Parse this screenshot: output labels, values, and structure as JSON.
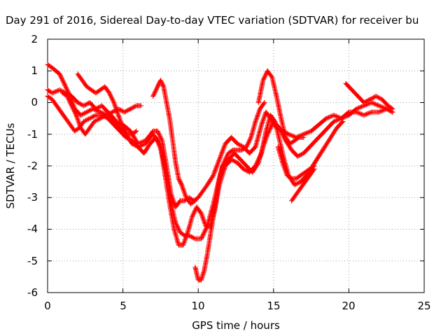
{
  "chart_data": {
    "type": "scatter",
    "title": "Day 291 of 2016, Sidereal Day-to-day VTEC variation (SDTVAR) for receiver bu",
    "xlabel": "GPS time / hours",
    "ylabel": "SDTVAR / TECUs",
    "xlim": [
      0,
      25
    ],
    "ylim": [
      -6,
      2
    ],
    "xticks": [
      "0",
      "5",
      "10",
      "15",
      "20",
      "25"
    ],
    "yticks": [
      "2",
      "1",
      "0",
      "-1",
      "-2",
      "-3",
      "-4",
      "-5",
      "-6"
    ],
    "grid": true,
    "marker": "plus",
    "color": "#ff0000",
    "series": [
      {
        "x": [
          0.0,
          0.3,
          0.8,
          1.2,
          1.5,
          1.8,
          2.2,
          2.6,
          3.0,
          3.5,
          4.0,
          4.5,
          5.0,
          5.5,
          6.0,
          6.5,
          7.0,
          7.3,
          7.6,
          7.9,
          8.2,
          8.5,
          8.8,
          9.1,
          9.4,
          9.7,
          10.0,
          10.3,
          10.6,
          11.0,
          11.4,
          11.8,
          12.2,
          12.6,
          13.0,
          13.4,
          13.8,
          14.2,
          14.5,
          14.8,
          15.2,
          15.6,
          16.0,
          16.5,
          17.0,
          17.5,
          18.0,
          18.5,
          19.0,
          19.5,
          20.0,
          20.5,
          21.0,
          21.5,
          22.0,
          22.5,
          22.9
        ],
        "y": [
          1.2,
          1.1,
          0.9,
          0.5,
          0.2,
          -0.2,
          -0.4,
          -0.3,
          -0.2,
          -0.3,
          -0.4,
          -0.6,
          -0.7,
          -0.9,
          -1.3,
          -1.2,
          -0.9,
          -0.9,
          -1.2,
          -2.0,
          -2.9,
          -3.3,
          -3.1,
          -3.1,
          -3.0,
          -3.1,
          -3.0,
          -2.8,
          -2.6,
          -2.3,
          -1.8,
          -1.3,
          -1.1,
          -1.3,
          -1.4,
          -1.6,
          -1.4,
          -0.7,
          -0.3,
          -0.5,
          -0.8,
          -0.9,
          -1.0,
          -1.1,
          -1.0,
          -0.9,
          -0.7,
          -0.5,
          -0.4,
          -0.5,
          -0.3,
          -0.3,
          -0.4,
          -0.3,
          -0.3,
          -0.2,
          -0.3
        ]
      },
      {
        "x": [
          0.0,
          0.3,
          0.8,
          1.2,
          1.6,
          2.0,
          2.4,
          2.8,
          3.2,
          3.6,
          4.0,
          4.4,
          4.8,
          5.2,
          5.6,
          6.0,
          6.5,
          7.0,
          7.3,
          7.6,
          7.9,
          8.2,
          8.5,
          8.8,
          9.1,
          9.4,
          9.8,
          10.2,
          10.6,
          11.0,
          11.3,
          11.6,
          12.0,
          12.4,
          12.8,
          13.2,
          13.6,
          14.0,
          14.3,
          14.6,
          15.0,
          15.4,
          15.8,
          16.2,
          16.6,
          17.0,
          17.4,
          17.8,
          18.2,
          18.6,
          19.0,
          19.5,
          20.0,
          20.5,
          21.0,
          21.5,
          22.0,
          22.5,
          22.9
        ],
        "y": [
          0.4,
          0.3,
          0.4,
          0.3,
          0.2,
          0.0,
          -0.1,
          0.0,
          -0.2,
          -0.1,
          -0.3,
          -0.5,
          -0.8,
          -1.0,
          -1.3,
          -1.4,
          -1.3,
          -1.0,
          -1.2,
          -1.6,
          -2.3,
          -3.2,
          -3.8,
          -4.1,
          -4.2,
          -4.2,
          -4.3,
          -4.3,
          -3.9,
          -3.2,
          -2.6,
          -2.0,
          -1.8,
          -1.6,
          -1.8,
          -2.0,
          -2.2,
          -1.9,
          -1.4,
          -1.0,
          -0.6,
          -0.8,
          -1.2,
          -1.5,
          -1.7,
          -1.6,
          -1.4,
          -1.2,
          -1.0,
          -0.8,
          -0.6,
          -0.5,
          -0.4,
          -0.2,
          -0.1,
          0.0,
          -0.1,
          -0.2,
          -0.3
        ]
      },
      {
        "x": [
          0.0,
          0.3,
          0.6,
          0.9,
          1.2,
          1.5,
          1.8,
          2.1,
          2.4,
          2.8,
          3.2,
          3.6,
          4.0,
          4.4,
          4.8,
          5.2,
          5.6,
          6.0,
          6.4,
          6.8,
          7.2,
          7.5,
          7.8,
          8.1,
          8.4,
          8.7,
          9.0,
          9.3,
          9.6,
          9.9,
          10.2,
          10.5,
          10.8,
          11.1,
          11.4,
          11.8,
          12.2,
          12.6,
          13.0,
          13.4,
          13.8,
          14.2,
          14.5,
          14.8,
          15.1,
          15.4,
          15.7,
          16.0,
          16.4,
          16.8,
          17.2,
          17.6,
          18.0,
          18.4,
          18.8,
          19.2,
          19.6
        ],
        "y": [
          0.2,
          0.1,
          -0.1,
          -0.3,
          -0.5,
          -0.7,
          -0.9,
          -0.8,
          -0.6,
          -0.5,
          -0.4,
          -0.4,
          -0.5,
          -0.7,
          -0.9,
          -1.1,
          -1.2,
          -1.4,
          -1.6,
          -1.3,
          -1.1,
          -1.4,
          -2.3,
          -3.2,
          -4.0,
          -4.5,
          -4.5,
          -4.1,
          -3.6,
          -3.3,
          -3.5,
          -3.9,
          -3.9,
          -3.4,
          -2.6,
          -2.0,
          -1.8,
          -1.9,
          -2.1,
          -2.2,
          -2.0,
          -1.6,
          -0.9,
          -0.4,
          -0.6,
          -1.2,
          -1.8,
          -2.3,
          -2.6,
          -2.5,
          -2.3,
          -2.0,
          -1.7,
          -1.4,
          -1.1,
          -0.8,
          -0.6
        ]
      },
      {
        "x": [
          1.0,
          1.3,
          1.6,
          1.9,
          2.2,
          2.5,
          2.8,
          3.1,
          3.5,
          3.9,
          4.3,
          4.7,
          5.1,
          5.5,
          5.9,
          6.2
        ],
        "y": [
          0.3,
          0.2,
          -0.1,
          -0.4,
          -0.8,
          -1.0,
          -0.8,
          -0.6,
          -0.5,
          -0.4,
          -0.3,
          -0.2,
          -0.3,
          -0.2,
          -0.1,
          -0.1
        ]
      },
      {
        "x": [
          2.0,
          2.3,
          2.6,
          2.9,
          3.2,
          3.5,
          3.8,
          4.1,
          4.4,
          4.7,
          5.0,
          5.3,
          5.6,
          5.9
        ],
        "y": [
          0.9,
          0.7,
          0.5,
          0.4,
          0.3,
          0.4,
          0.5,
          0.3,
          0.0,
          -0.4,
          -0.8,
          -1.0,
          -1.0,
          -0.9
        ]
      },
      {
        "x": [
          7.0,
          7.3,
          7.5,
          7.7,
          7.9,
          8.1,
          8.3,
          8.5,
          8.7,
          8.9,
          9.2,
          9.5,
          9.8
        ],
        "y": [
          0.2,
          0.5,
          0.7,
          0.5,
          0.0,
          -0.5,
          -1.2,
          -1.9,
          -2.4,
          -2.6,
          -3.0,
          -3.2,
          -3.1
        ]
      },
      {
        "x": [
          9.8,
          10.0,
          10.2,
          10.4,
          10.6,
          10.8,
          11.0,
          11.2,
          11.4,
          11.7,
          12.0,
          12.3,
          12.6,
          12.9,
          13.2,
          13.5,
          13.8,
          14.1,
          14.4
        ],
        "y": [
          -5.2,
          -5.6,
          -5.6,
          -5.3,
          -4.8,
          -4.2,
          -3.6,
          -3.0,
          -2.4,
          -1.9,
          -1.6,
          -1.5,
          -1.5,
          -1.5,
          -1.4,
          -1.1,
          -0.6,
          -0.2,
          0.0
        ]
      },
      {
        "x": [
          14.0,
          14.3,
          14.6,
          14.9,
          15.2,
          15.5,
          15.8,
          16.1,
          16.4,
          16.7,
          17.0
        ],
        "y": [
          0.0,
          0.7,
          1.0,
          0.8,
          0.2,
          -0.5,
          -1.1,
          -1.3,
          -1.2,
          -1.1,
          -1.1
        ]
      },
      {
        "x": [
          15.3,
          15.6,
          15.9,
          16.2,
          16.5,
          16.8,
          17.1,
          17.4,
          17.7
        ],
        "y": [
          -1.4,
          -1.9,
          -2.3,
          -2.4,
          -2.4,
          -2.3,
          -2.2,
          -2.1,
          -2.0
        ]
      },
      {
        "x": [
          16.2,
          16.5,
          16.8,
          17.1,
          17.4,
          17.7
        ],
        "y": [
          -3.1,
          -2.9,
          -2.7,
          -2.5,
          -2.3,
          -2.1
        ]
      },
      {
        "x": [
          19.8,
          20.2,
          20.6,
          21.0,
          21.4,
          21.8,
          22.2,
          22.6,
          22.9
        ],
        "y": [
          0.6,
          0.4,
          0.2,
          0.0,
          0.1,
          0.2,
          0.1,
          -0.1,
          -0.2
        ]
      }
    ]
  }
}
